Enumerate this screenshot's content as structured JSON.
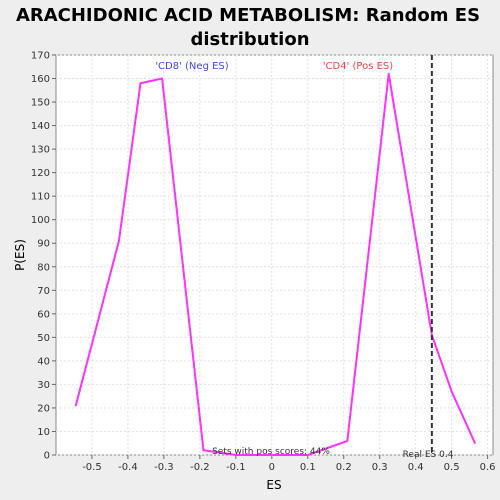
{
  "chart_data": {
    "type": "line",
    "title_line1": "ARACHIDONIC ACID METABOLISM: Random ES",
    "title_line2": "distribution",
    "xlabel": "ES",
    "ylabel": "P(ES)",
    "xlim": [
      -0.6,
      0.615
    ],
    "ylim": [
      0,
      170
    ],
    "x_ticks": [
      -0.5,
      -0.4,
      -0.3,
      -0.2,
      -0.1,
      0,
      0.1,
      0.2,
      0.3,
      0.4,
      0.5,
      0.6
    ],
    "x_tick_labels": [
      "-0.5",
      "-0.4",
      "-0.3",
      "-0.2",
      "-0.1",
      "0",
      "0.1",
      "0.2",
      "0.3",
      "0.4",
      "0.5",
      "0.6"
    ],
    "y_ticks": [
      0,
      10,
      20,
      30,
      40,
      50,
      60,
      70,
      80,
      90,
      100,
      110,
      120,
      130,
      140,
      150,
      160,
      170
    ],
    "y_tick_labels": [
      "0",
      "10",
      "20",
      "30",
      "40",
      "50",
      "60",
      "70",
      "80",
      "90",
      "100",
      "110",
      "120",
      "130",
      "140",
      "150",
      "160",
      "170"
    ],
    "grid": true,
    "series": [
      {
        "color": "#ff33ff",
        "x": [
          -0.545,
          -0.425,
          -0.365,
          -0.305,
          -0.19,
          -0.1,
          0.0,
          0.1,
          0.21,
          0.325,
          0.445,
          0.5,
          0.565
        ],
        "y": [
          21,
          91,
          158,
          160,
          2,
          0,
          0,
          0,
          6,
          162,
          51,
          27,
          5
        ]
      }
    ],
    "vline": {
      "x": 0.445,
      "label": "Real ES 0.4",
      "color": "#333333"
    },
    "annotations": {
      "neg": {
        "text": "'CD8' (Neg ES)",
        "color": "#4444ee"
      },
      "pos": {
        "text": "'CD4' (Pos ES)",
        "color": "#ee4444"
      },
      "pos_scores": "Sets with pos scores: 44%"
    }
  }
}
